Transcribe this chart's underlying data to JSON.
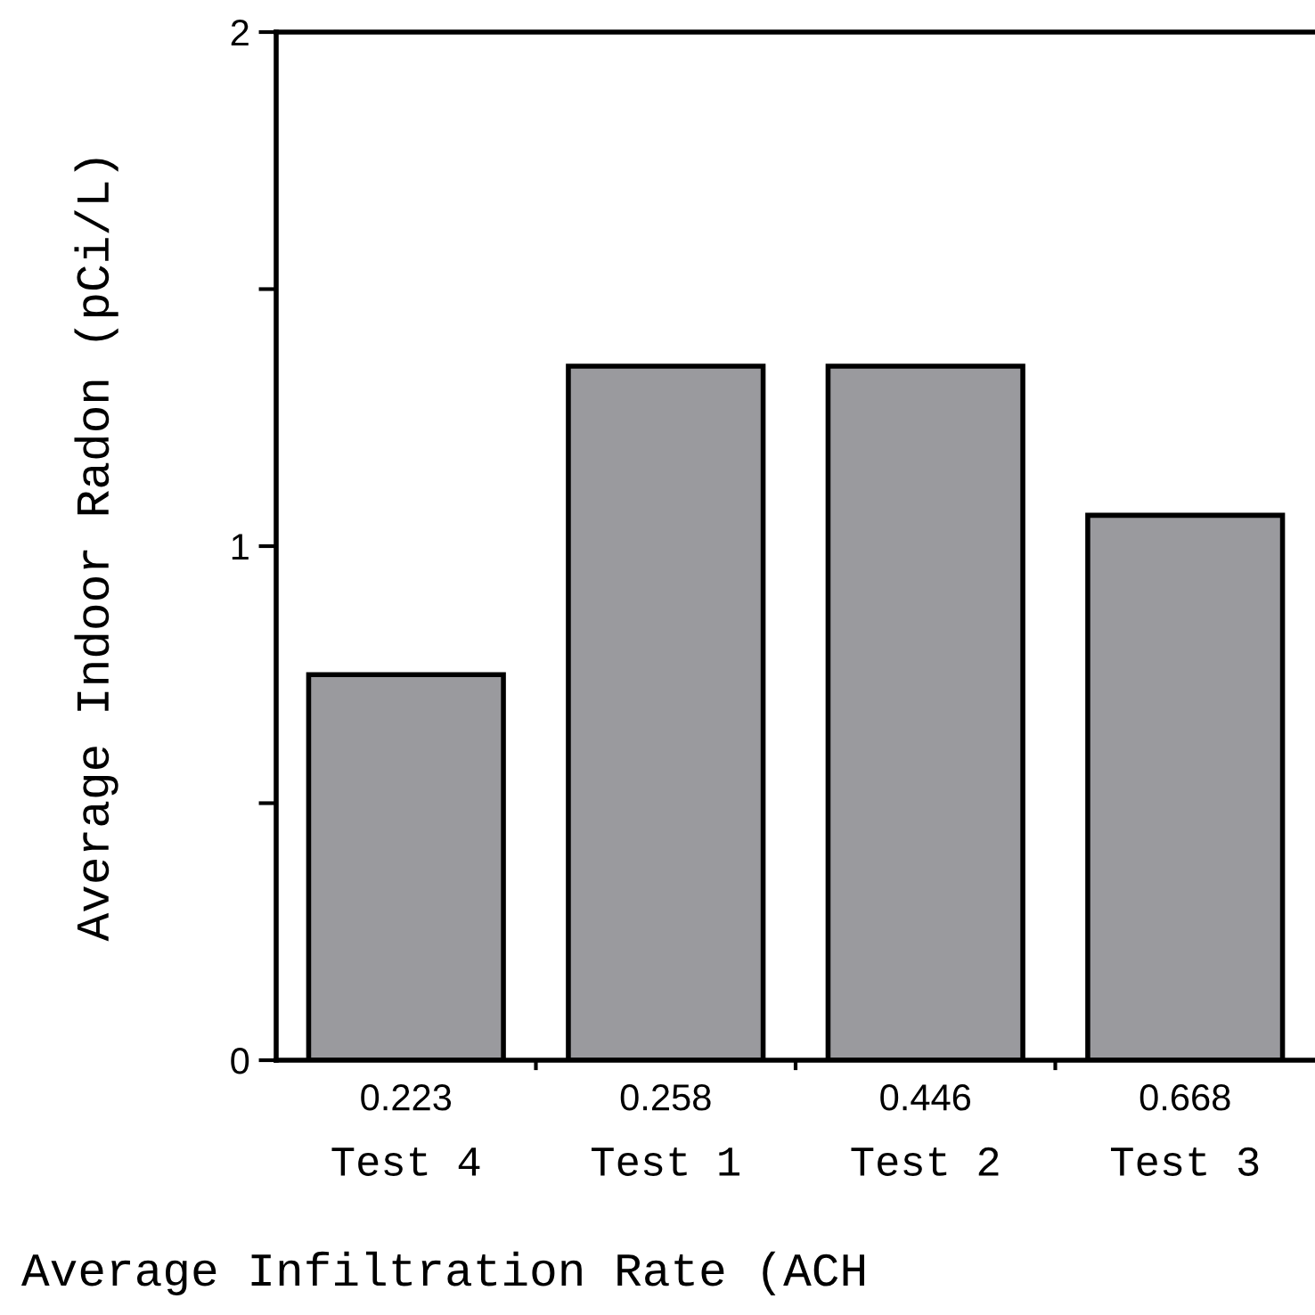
{
  "chart_data": {
    "type": "bar",
    "xlabel": "Average Infiltration Rate (ACH",
    "ylabel": "Average Indoor Radon (pCi/L)",
    "categories": [
      "0.223\nTest 4",
      "0.258\nTest 1",
      "0.446\nTest 2",
      "0.668\nTest 3"
    ],
    "values": [
      0.75,
      1.35,
      1.35,
      1.06
    ],
    "color": "#9a9a9e",
    "ylim": [
      0,
      2
    ],
    "yticks": [
      0,
      {
        "value": 0.5,
        "label": null
      },
      1,
      {
        "value": 1.5,
        "label": null
      },
      2
    ],
    "grid": false
  }
}
